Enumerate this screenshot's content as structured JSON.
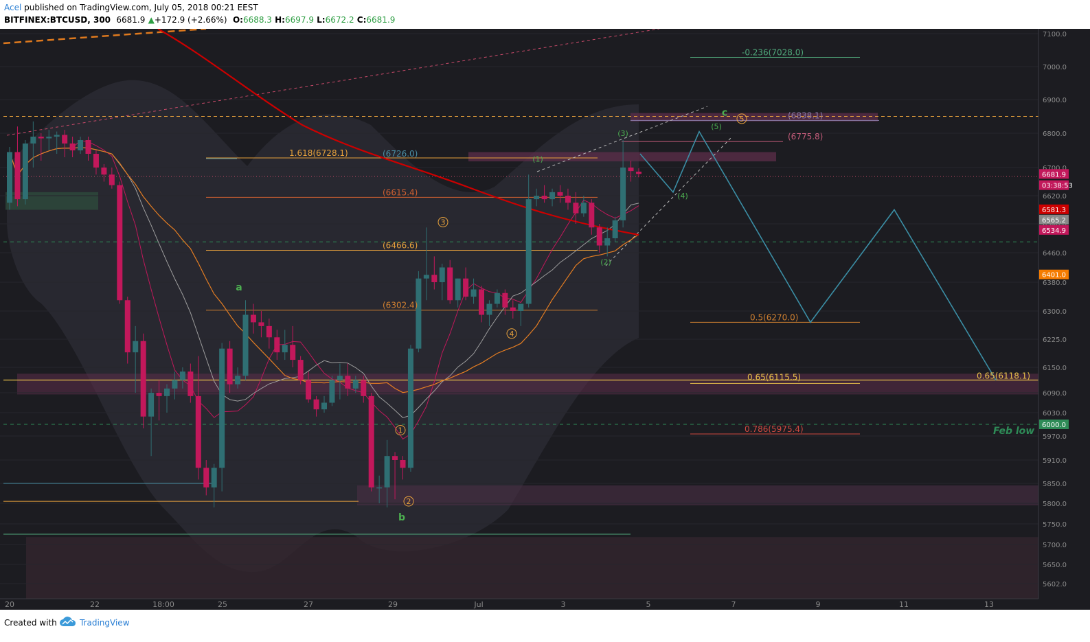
{
  "header": {
    "author": "Acel",
    "published": "published on TradingView.com, July 05, 2018 00:21 EEST",
    "symbol": "BITFINEX:BTCUSD, 300",
    "last": "6681.9",
    "change": "+172.9 (+2.66%)",
    "open_label": "O:",
    "open": "6688.3",
    "high_label": "H:",
    "high": "6697.9",
    "low_label": "L:",
    "low": "6672.2",
    "close_label": "C:",
    "close": "6681.9"
  },
  "footer": {
    "created_with": "Created with",
    "brand": "TradingView"
  },
  "colors": {
    "background": "#1c1c21",
    "bull": "#2f6f73",
    "bear": "#c2185b",
    "sma_red": "#cc0000",
    "fib_orange": "#e8a23c",
    "projection": "#3b8ea5"
  },
  "chart_data": {
    "type": "candlestick",
    "symbol": "BITFINEX:BTCUSD",
    "timeframe": "300",
    "ylim": [
      5560,
      7130
    ],
    "y_ticks": [
      7100.0,
      7000.0,
      6900.0,
      6800.0,
      6700.0,
      6620.0,
      6540.0,
      6460.0,
      6380.0,
      6300.0,
      6225.0,
      6150.0,
      6090.0,
      6030.0,
      5970.0,
      5910.0,
      5850.0,
      5800.0,
      5750.0,
      5700.0,
      5650.0,
      5602.0
    ],
    "x_ticks": [
      "20",
      "22",
      "18:00",
      "25",
      "27",
      "29",
      "Jul",
      "3",
      "5",
      "7",
      "9",
      "11",
      "13"
    ],
    "price_labels": [
      {
        "value": "6681.9",
        "price": 6681.9,
        "color": "#c2185b"
      },
      {
        "value": "03:38:53",
        "price": 6650,
        "color": "#c2185b"
      },
      {
        "value": "6581.3",
        "price": 6581.3,
        "color": "#cc0000"
      },
      {
        "value": "6565.2",
        "price": 6565.2,
        "color": "#888888"
      },
      {
        "value": "6534.9",
        "price": 6534.9,
        "color": "#c2185b"
      },
      {
        "value": "6401.0",
        "price": 6401.0,
        "color": "#f57c00"
      },
      {
        "value": "6000.0",
        "price": 6000.0,
        "color": "#2e8b57"
      }
    ],
    "fib_labels": [
      {
        "text": "-0.236(7028.0)",
        "price": 7028.0,
        "color": "#4fa77a"
      },
      {
        "text": "(6838.1)",
        "price": 6838.1,
        "color": "#8a7aa8"
      },
      {
        "text": "(6775.8)",
        "price": 6775.8,
        "color": "#c45c7a"
      },
      {
        "text": "1.618(6728.1)",
        "price": 6728.1,
        "color": "#e8a23c"
      },
      {
        "text": "(6726.0)",
        "price": 6726.0,
        "color": "#4a8fa5"
      },
      {
        "text": "(6615.4)",
        "price": 6615.4,
        "color": "#d06030"
      },
      {
        "text": "(6466.6)",
        "price": 6466.6,
        "color": "#e8a23c"
      },
      {
        "text": "(6302.4)",
        "price": 6302.4,
        "color": "#d08030"
      },
      {
        "text": "0.5(6270.0)",
        "price": 6270.0,
        "color": "#d08030"
      },
      {
        "text": "0.65(6115.5)",
        "price": 6115.5,
        "color": "#e8c04a"
      },
      {
        "text": "0.65(6118.1)",
        "price": 6118.1,
        "color": "#e8c04a"
      },
      {
        "text": "0.786(5975.4)",
        "price": 5975.4,
        "color": "#d04a40"
      }
    ],
    "wave_labels": [
      {
        "text": "a",
        "color": "#4caf50"
      },
      {
        "text": "b",
        "color": "#4caf50"
      },
      {
        "text": "c",
        "color": "#4caf50"
      },
      {
        "text": "1",
        "color": "#e8a23c"
      },
      {
        "text": "2",
        "color": "#e8a23c"
      },
      {
        "text": "3",
        "color": "#e8a23c"
      },
      {
        "text": "4",
        "color": "#e8a23c"
      },
      {
        "text": "5",
        "color": "#e8a23c"
      },
      {
        "text": "(1)",
        "color": "#4caf50"
      },
      {
        "text": "(2)",
        "color": "#4caf50"
      },
      {
        "text": "(3)",
        "color": "#4caf50"
      },
      {
        "text": "(4)",
        "color": "#4caf50"
      },
      {
        "text": "(5)",
        "color": "#4caf50"
      }
    ],
    "annotation": "Feb low",
    "projection_path": [
      6740,
      6630,
      6805,
      6270,
      6580,
      6120
    ],
    "candles": [
      {
        "o": 6600,
        "h": 6760,
        "l": 6580,
        "c": 6745
      },
      {
        "o": 6745,
        "h": 6820,
        "l": 6590,
        "c": 6610
      },
      {
        "o": 6610,
        "h": 6780,
        "l": 6595,
        "c": 6770
      },
      {
        "o": 6770,
        "h": 6835,
        "l": 6700,
        "c": 6790
      },
      {
        "o": 6790,
        "h": 6800,
        "l": 6720,
        "c": 6785
      },
      {
        "o": 6785,
        "h": 6810,
        "l": 6750,
        "c": 6790
      },
      {
        "o": 6790,
        "h": 6805,
        "l": 6740,
        "c": 6795
      },
      {
        "o": 6795,
        "h": 6810,
        "l": 6730,
        "c": 6770
      },
      {
        "o": 6770,
        "h": 6790,
        "l": 6730,
        "c": 6750
      },
      {
        "o": 6750,
        "h": 6790,
        "l": 6740,
        "c": 6780
      },
      {
        "o": 6780,
        "h": 6790,
        "l": 6720,
        "c": 6740
      },
      {
        "o": 6740,
        "h": 6750,
        "l": 6680,
        "c": 6700
      },
      {
        "o": 6700,
        "h": 6710,
        "l": 6660,
        "c": 6680
      },
      {
        "o": 6680,
        "h": 6700,
        "l": 6640,
        "c": 6650
      },
      {
        "o": 6650,
        "h": 6660,
        "l": 6320,
        "c": 6330
      },
      {
        "o": 6330,
        "h": 6340,
        "l": 6160,
        "c": 6190
      },
      {
        "o": 6190,
        "h": 6260,
        "l": 6090,
        "c": 6220
      },
      {
        "o": 6220,
        "h": 6240,
        "l": 5990,
        "c": 6020
      },
      {
        "o": 6020,
        "h": 6100,
        "l": 5920,
        "c": 6090
      },
      {
        "o": 6090,
        "h": 6120,
        "l": 6010,
        "c": 6080
      },
      {
        "o": 6080,
        "h": 6110,
        "l": 6030,
        "c": 6100
      },
      {
        "o": 6100,
        "h": 6140,
        "l": 6070,
        "c": 6120
      },
      {
        "o": 6120,
        "h": 6150,
        "l": 6100,
        "c": 6140
      },
      {
        "o": 6140,
        "h": 6160,
        "l": 6060,
        "c": 6080
      },
      {
        "o": 6080,
        "h": 6180,
        "l": 5860,
        "c": 5890
      },
      {
        "o": 5890,
        "h": 5910,
        "l": 5820,
        "c": 5840
      },
      {
        "o": 5840,
        "h": 5900,
        "l": 5790,
        "c": 5890
      },
      {
        "o": 5890,
        "h": 6215,
        "l": 5830,
        "c": 6200
      },
      {
        "o": 6200,
        "h": 6220,
        "l": 6090,
        "c": 6110
      },
      {
        "o": 6110,
        "h": 6150,
        "l": 6100,
        "c": 6130
      },
      {
        "o": 6130,
        "h": 6330,
        "l": 6120,
        "c": 6290
      },
      {
        "o": 6290,
        "h": 6320,
        "l": 6240,
        "c": 6270
      },
      {
        "o": 6270,
        "h": 6300,
        "l": 6230,
        "c": 6260
      },
      {
        "o": 6260,
        "h": 6280,
        "l": 6200,
        "c": 6230
      },
      {
        "o": 6230,
        "h": 6250,
        "l": 6170,
        "c": 6190
      },
      {
        "o": 6190,
        "h": 6250,
        "l": 6170,
        "c": 6210
      },
      {
        "o": 6210,
        "h": 6260,
        "l": 6150,
        "c": 6170
      },
      {
        "o": 6170,
        "h": 6180,
        "l": 6110,
        "c": 6120
      },
      {
        "o": 6120,
        "h": 6140,
        "l": 6060,
        "c": 6070
      },
      {
        "o": 6070,
        "h": 6080,
        "l": 6020,
        "c": 6040
      },
      {
        "o": 6040,
        "h": 6080,
        "l": 6030,
        "c": 6060
      },
      {
        "o": 6060,
        "h": 6130,
        "l": 6050,
        "c": 6120
      },
      {
        "o": 6120,
        "h": 6160,
        "l": 6070,
        "c": 6130
      },
      {
        "o": 6130,
        "h": 6160,
        "l": 6080,
        "c": 6100
      },
      {
        "o": 6100,
        "h": 6130,
        "l": 6090,
        "c": 6120
      },
      {
        "o": 6120,
        "h": 6130,
        "l": 6060,
        "c": 6080
      },
      {
        "o": 6080,
        "h": 6090,
        "l": 5830,
        "c": 5840
      },
      {
        "o": 5840,
        "h": 5870,
        "l": 5800,
        "c": 5840
      },
      {
        "o": 5840,
        "h": 5960,
        "l": 5790,
        "c": 5920
      },
      {
        "o": 5920,
        "h": 5930,
        "l": 5810,
        "c": 5910
      },
      {
        "o": 5910,
        "h": 5920,
        "l": 5860,
        "c": 5890
      },
      {
        "o": 5890,
        "h": 6210,
        "l": 5880,
        "c": 6200
      },
      {
        "o": 6200,
        "h": 6410,
        "l": 6190,
        "c": 6390
      },
      {
        "o": 6390,
        "h": 6530,
        "l": 6330,
        "c": 6400
      },
      {
        "o": 6400,
        "h": 6450,
        "l": 6360,
        "c": 6380
      },
      {
        "o": 6380,
        "h": 6430,
        "l": 6330,
        "c": 6420
      },
      {
        "o": 6420,
        "h": 6440,
        "l": 6320,
        "c": 6330
      },
      {
        "o": 6330,
        "h": 6390,
        "l": 6310,
        "c": 6390
      },
      {
        "o": 6390,
        "h": 6420,
        "l": 6330,
        "c": 6340
      },
      {
        "o": 6340,
        "h": 6390,
        "l": 6320,
        "c": 6360
      },
      {
        "o": 6360,
        "h": 6370,
        "l": 6270,
        "c": 6290
      },
      {
        "o": 6290,
        "h": 6330,
        "l": 6260,
        "c": 6320
      },
      {
        "o": 6320,
        "h": 6360,
        "l": 6310,
        "c": 6350
      },
      {
        "o": 6350,
        "h": 6360,
        "l": 6290,
        "c": 6310
      },
      {
        "o": 6310,
        "h": 6330,
        "l": 6280,
        "c": 6300
      },
      {
        "o": 6300,
        "h": 6320,
        "l": 6260,
        "c": 6320
      },
      {
        "o": 6320,
        "h": 6680,
        "l": 6310,
        "c": 6610
      },
      {
        "o": 6610,
        "h": 6640,
        "l": 6590,
        "c": 6620
      },
      {
        "o": 6620,
        "h": 6650,
        "l": 6600,
        "c": 6610
      },
      {
        "o": 6610,
        "h": 6640,
        "l": 6590,
        "c": 6630
      },
      {
        "o": 6630,
        "h": 6650,
        "l": 6600,
        "c": 6620
      },
      {
        "o": 6620,
        "h": 6640,
        "l": 6580,
        "c": 6600
      },
      {
        "o": 6600,
        "h": 6630,
        "l": 6540,
        "c": 6570
      },
      {
        "o": 6570,
        "h": 6620,
        "l": 6560,
        "c": 6600
      },
      {
        "o": 6600,
        "h": 6610,
        "l": 6510,
        "c": 6530
      },
      {
        "o": 6530,
        "h": 6540,
        "l": 6460,
        "c": 6480
      },
      {
        "o": 6480,
        "h": 6530,
        "l": 6450,
        "c": 6500
      },
      {
        "o": 6500,
        "h": 6560,
        "l": 6490,
        "c": 6550
      },
      {
        "o": 6550,
        "h": 6780,
        "l": 6530,
        "c": 6700
      },
      {
        "o": 6700,
        "h": 6720,
        "l": 6660,
        "c": 6690
      },
      {
        "o": 6688.3,
        "h": 6697.9,
        "l": 6672.2,
        "c": 6681.9
      }
    ]
  }
}
